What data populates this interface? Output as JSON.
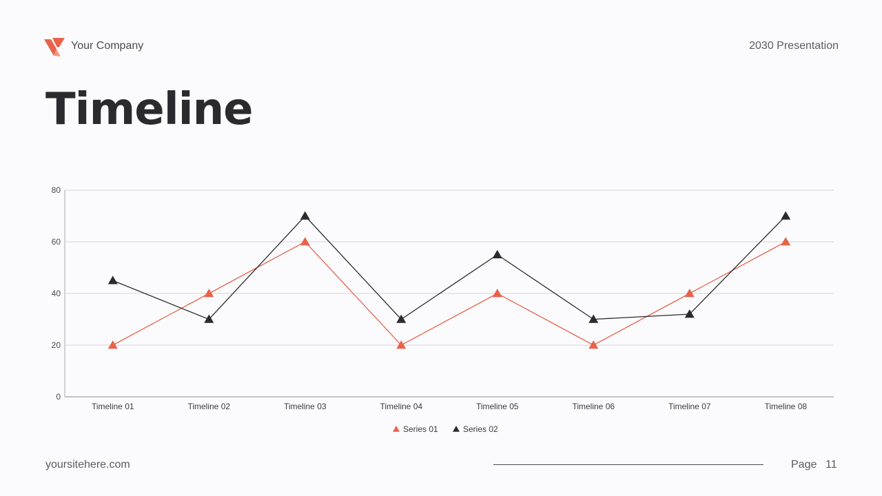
{
  "header": {
    "company": "Your Company",
    "presentation": "2030 Presentation",
    "logo_color": "#e8634a"
  },
  "slide": {
    "title": "Timeline"
  },
  "footer": {
    "site": "yoursitehere.com",
    "page_label": "Page",
    "page_number": "11"
  },
  "chart_data": {
    "type": "line",
    "categories": [
      "Timeline 01",
      "Timeline 02",
      "Timeline 03",
      "Timeline 04",
      "Timeline 05",
      "Timeline 06",
      "Timeline 07",
      "Timeline 08"
    ],
    "series": [
      {
        "name": "Series 01",
        "color": "#e8634a",
        "values": [
          20,
          40,
          60,
          20,
          40,
          20,
          40,
          60
        ]
      },
      {
        "name": "Series 02",
        "color": "#2b2a2e",
        "values": [
          45,
          30,
          70,
          30,
          55,
          30,
          32,
          70
        ]
      }
    ],
    "ylim": [
      0,
      80
    ],
    "yticks": [
      0,
      20,
      40,
      60,
      80
    ],
    "marker": "triangle",
    "grid": true,
    "legend": "bottom-center"
  }
}
